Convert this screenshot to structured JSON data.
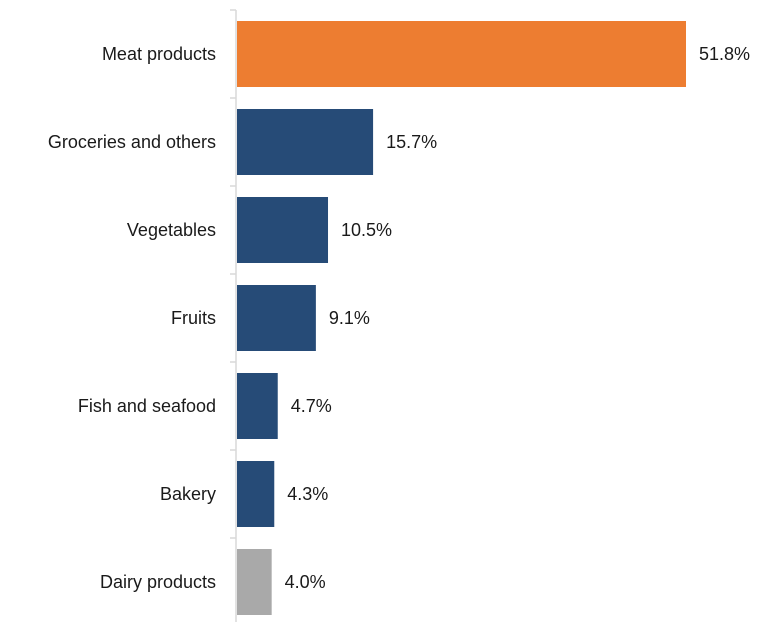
{
  "chart_data": {
    "type": "bar",
    "orientation": "horizontal",
    "title": "",
    "xlabel": "",
    "ylabel": "",
    "categories": [
      "Meat products",
      "Groceries and others",
      "Vegetables",
      "Fruits",
      "Fish and seafood",
      "Bakery",
      "Dairy products"
    ],
    "values": [
      51.8,
      15.7,
      10.5,
      9.1,
      4.7,
      4.3,
      4.0
    ],
    "value_labels": [
      "51.8%",
      "15.7%",
      "10.5%",
      "9.1%",
      "4.7%",
      "4.3%",
      "4.0%"
    ],
    "unit": "%",
    "bar_colors": [
      "#ED7D31",
      "#264B77",
      "#264B77",
      "#264B77",
      "#264B77",
      "#264B77",
      "#A9A9A9"
    ],
    "xlim": [
      0,
      51.8
    ],
    "grid": false,
    "legend": "none",
    "axis_color": "#D9D9D9"
  }
}
